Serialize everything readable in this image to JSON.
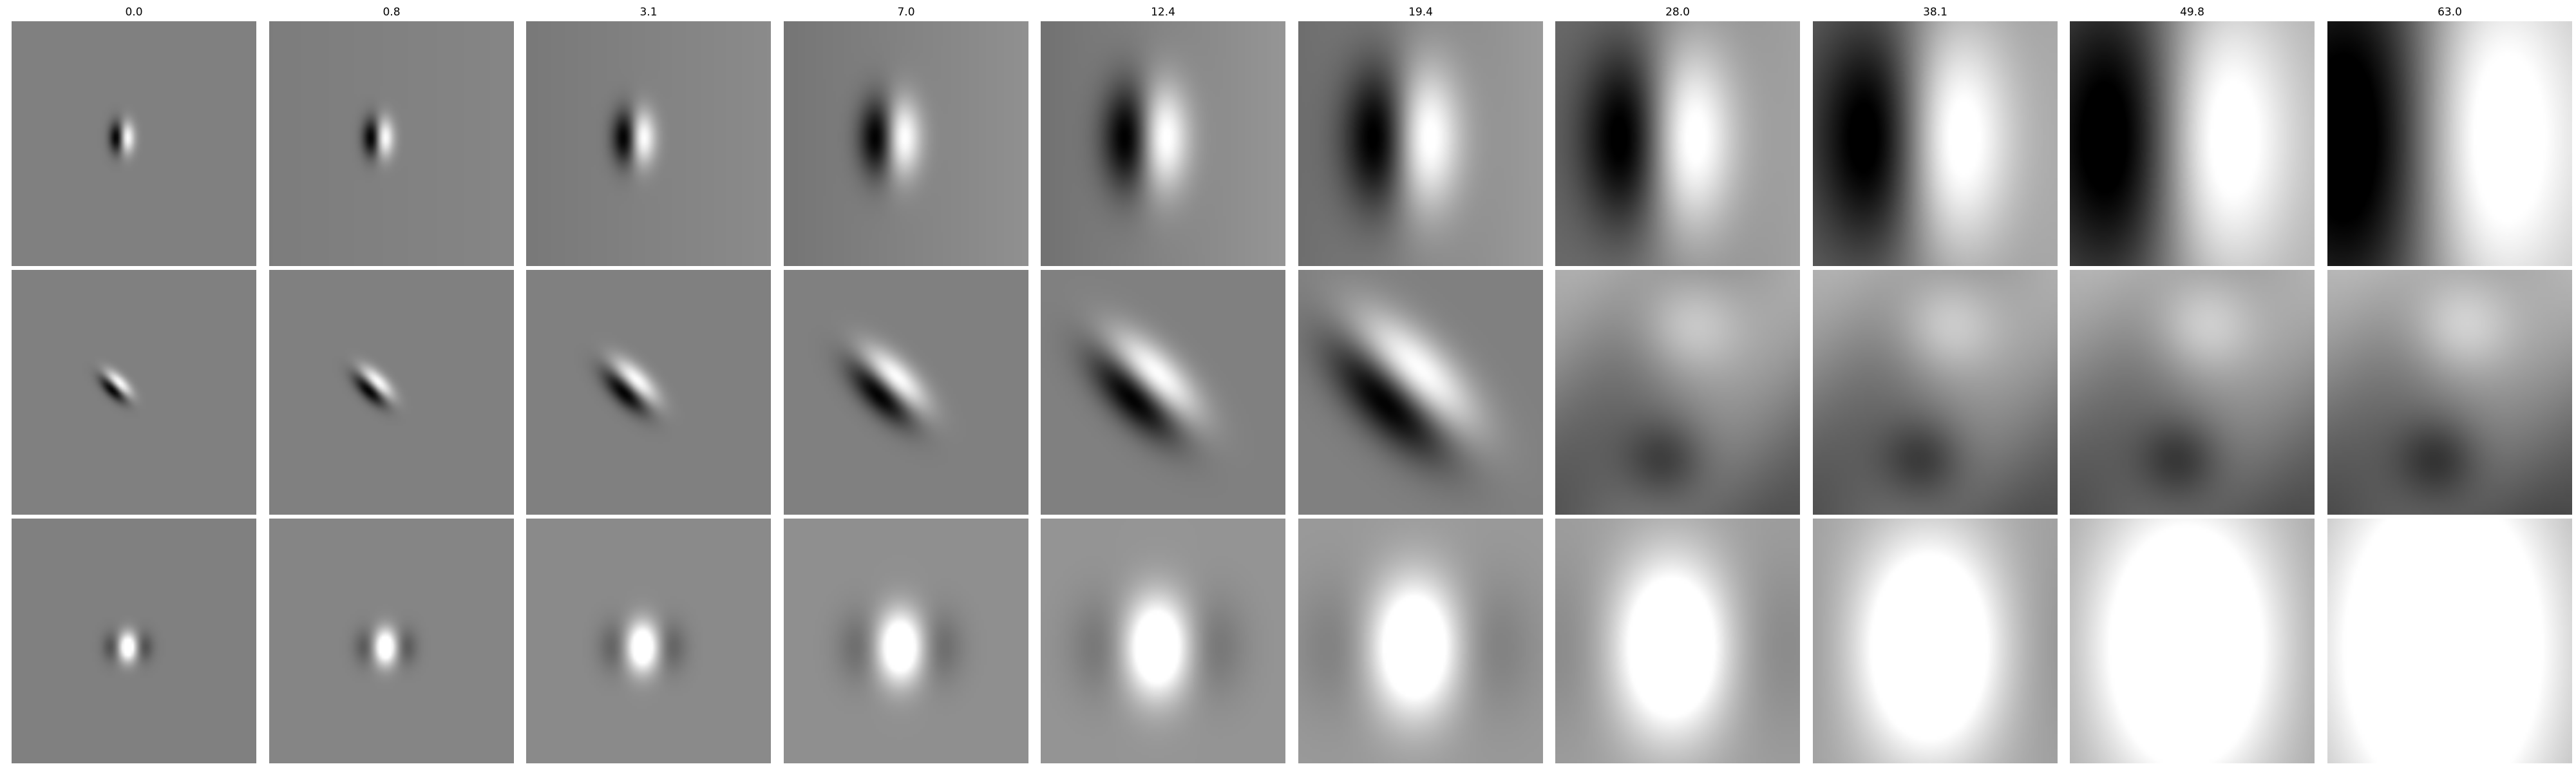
{
  "figure": {
    "column_labels": [
      "0.0",
      "0.8",
      "3.1",
      "7.0",
      "12.4",
      "19.4",
      "28.0",
      "38.1",
      "49.8",
      "63.0"
    ],
    "rows": [
      {
        "label": "",
        "pattern": "vertical-dipole",
        "polarity": "dark-left-bright-right",
        "orientation_deg": 0
      },
      {
        "label": "",
        "pattern": "diagonal-dipole",
        "polarity": "dark-upper-left-bright-lower-right",
        "orientation_deg": 45
      },
      {
        "label": "",
        "pattern": "central-blob",
        "polarity": "bright-center-dark-flanks",
        "orientation_deg": 0
      }
    ],
    "colors": {
      "background": "#ffffff",
      "neutral_gray": "#808080",
      "dark": "#000000",
      "bright": "#ffffff"
    }
  }
}
